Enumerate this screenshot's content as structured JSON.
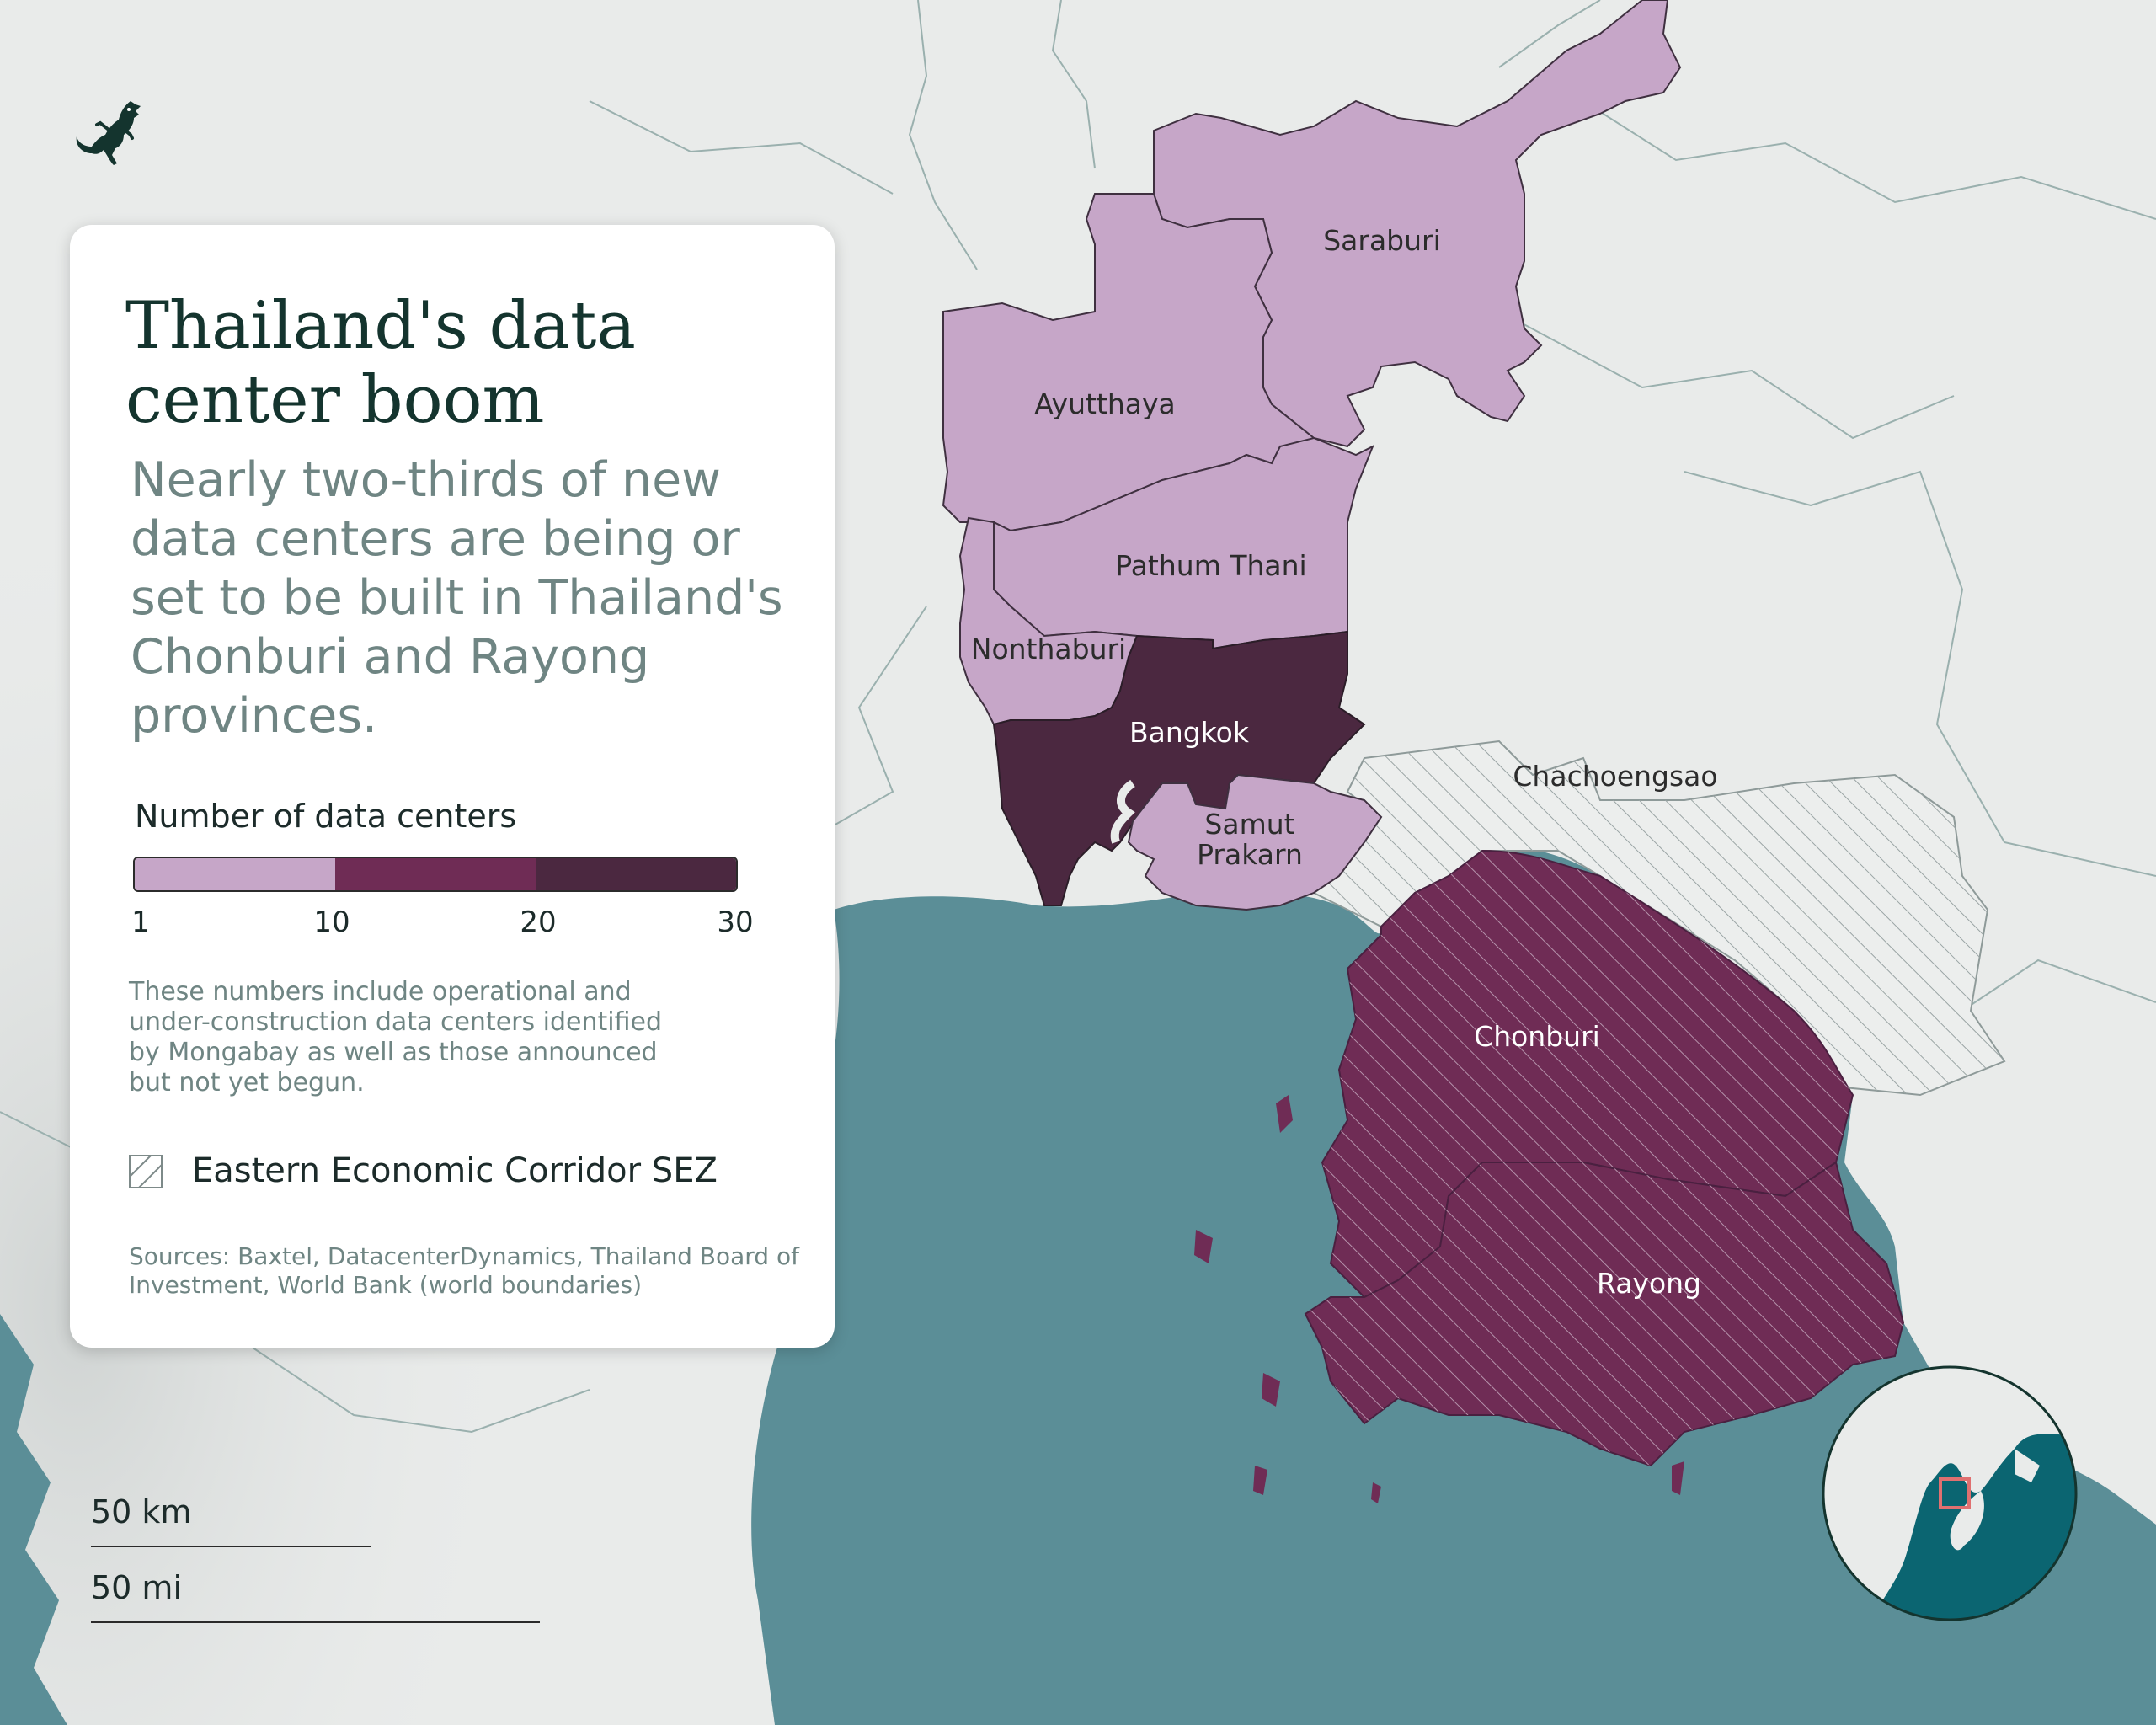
{
  "title": "Thailand's data center boom",
  "subtitle": "Nearly two-thirds of new data centers are being or set to be built in Thailand's Chonburi and Rayong provinces.",
  "legend": {
    "title": "Number of data centers",
    "ticks": [
      "1",
      "10",
      "20",
      "30"
    ],
    "classes": [
      {
        "range": [
          1,
          10
        ],
        "color": "#c6a6c8"
      },
      {
        "range": [
          10,
          20
        ],
        "color": "#6f2c55"
      },
      {
        "range": [
          20,
          30
        ],
        "color": "#4b2840"
      }
    ],
    "note": "These numbers include operational and under-construction data centers identified by Mongabay as well as those announced but not yet begun.",
    "sez_label": "Eastern Economic Corridor SEZ"
  },
  "sources": "Sources: Baxtel, DatacenterDynamics, Thailand Board of Investment, World Bank (world boundaries)",
  "scale_bar": {
    "km_label": "50 km",
    "mi_label": "50 mi"
  },
  "provinces": [
    {
      "name": "Saraburi",
      "class": "1-10",
      "sez": false
    },
    {
      "name": "Ayutthaya",
      "class": "1-10",
      "sez": false
    },
    {
      "name": "Pathum Thani",
      "class": "1-10",
      "sez": false
    },
    {
      "name": "Nonthaburi",
      "class": "1-10",
      "sez": false
    },
    {
      "name": "Bangkok",
      "class": "20-30",
      "sez": false
    },
    {
      "name": "Samut Prakarn",
      "class": "1-10",
      "sez": false
    },
    {
      "name": "Chachoengsao",
      "class": "none",
      "sez": true
    },
    {
      "name": "Chonburi",
      "class": "10-20",
      "sez": true
    },
    {
      "name": "Rayong",
      "class": "10-20",
      "sez": true
    }
  ],
  "colors": {
    "sea": "#5b8e97",
    "land": "#e9ebea",
    "boundary": "#9ab0ae",
    "inset_sea": "#0b6571",
    "inset_box": "#e07070"
  },
  "icons": {
    "logo": "gecko-icon"
  }
}
